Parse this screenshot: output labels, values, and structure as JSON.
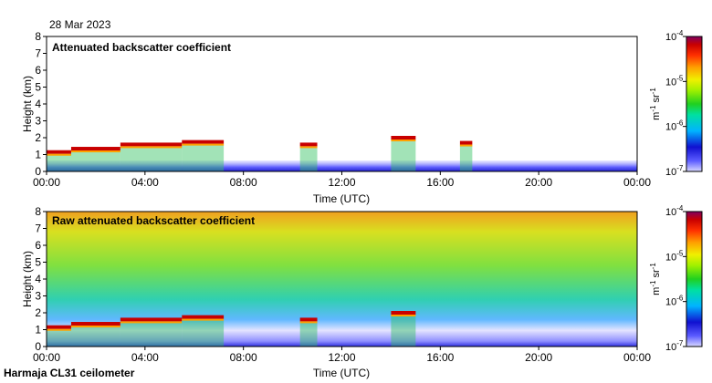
{
  "date": "28 Mar 2023",
  "instrument": "Harmaja CL31 ceilometer",
  "chart_data": [
    {
      "type": "heatmap",
      "title": "Attenuated backscatter coefficient",
      "xlabel": "Time (UTC)",
      "ylabel": "Height (km)",
      "xlim": [
        0,
        24
      ],
      "ylim": [
        0,
        8
      ],
      "xticks": [
        "00:00",
        "04:00",
        "08:00",
        "12:00",
        "16:00",
        "20:00",
        "00:00"
      ],
      "yticks": [
        "0",
        "1",
        "2",
        "3",
        "4",
        "5",
        "6",
        "7",
        "8"
      ],
      "cloud_layers": [
        {
          "start": 0.0,
          "end": 1.0,
          "height": 1.15
        },
        {
          "start": 1.0,
          "end": 3.0,
          "height": 1.35
        },
        {
          "start": 3.0,
          "end": 5.5,
          "height": 1.6
        },
        {
          "start": 5.5,
          "end": 7.2,
          "height": 1.75
        },
        {
          "start": 10.3,
          "end": 11.0,
          "height": 1.6
        },
        {
          "start": 14.0,
          "end": 15.0,
          "height": 2.0
        },
        {
          "start": 16.8,
          "end": 17.3,
          "height": 1.7
        }
      ]
    },
    {
      "type": "heatmap",
      "title": "Raw attenuated backscatter coefficient",
      "xlabel": "Time (UTC)",
      "ylabel": "Height (km)",
      "xlim": [
        0,
        24
      ],
      "ylim": [
        0,
        8
      ],
      "xticks": [
        "00:00",
        "04:00",
        "08:00",
        "12:00",
        "16:00",
        "20:00",
        "00:00"
      ],
      "yticks": [
        "0",
        "1",
        "2",
        "3",
        "4",
        "5",
        "6",
        "7",
        "8"
      ],
      "cloud_layers": [
        {
          "start": 0.0,
          "end": 1.0,
          "height": 1.15
        },
        {
          "start": 1.0,
          "end": 3.0,
          "height": 1.35
        },
        {
          "start": 3.0,
          "end": 5.5,
          "height": 1.6
        },
        {
          "start": 5.5,
          "end": 7.2,
          "height": 1.75
        },
        {
          "start": 10.3,
          "end": 11.0,
          "height": 1.6
        },
        {
          "start": 14.0,
          "end": 15.0,
          "height": 2.0
        }
      ]
    }
  ],
  "colorbar": {
    "ticks": [
      "10-4",
      "10-5",
      "10-6",
      "10-7"
    ],
    "base": "10",
    "exponents": [
      "-4",
      "-5",
      "-6",
      "-7"
    ],
    "unit_m": "m",
    "unit_m_exp": "-1",
    "unit_sr": "sr",
    "unit_sr_exp": "-1",
    "colors": [
      "#d8d8ff",
      "#5a5aff",
      "#1010d0",
      "#00b4ff",
      "#00e0a0",
      "#20d020",
      "#a0f000",
      "#f0f000",
      "#ffa000",
      "#ff3000",
      "#c80000",
      "#800060"
    ]
  }
}
